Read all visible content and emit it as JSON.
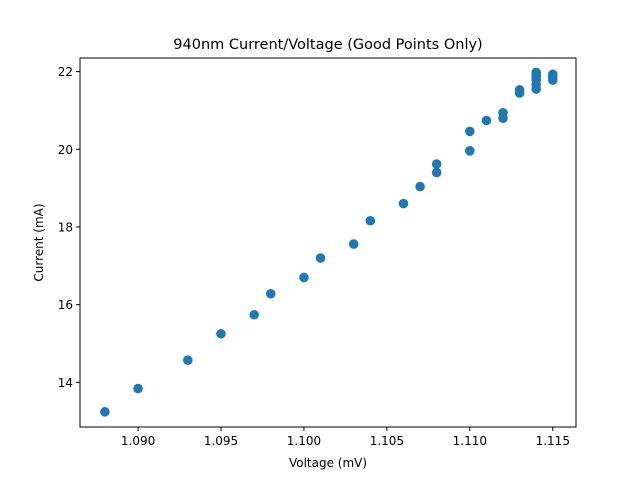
{
  "chart_data": {
    "type": "scatter",
    "title": "940nm Current/Voltage (Good Points Only)",
    "xlabel": "Voltage (mV)",
    "ylabel": "Current (mA)",
    "xlim": [
      1.0865,
      1.1164
    ],
    "ylim": [
      12.85,
      22.35
    ],
    "xticks": [
      1.09,
      1.095,
      1.1,
      1.105,
      1.11,
      1.115
    ],
    "xtick_labels": [
      "1.090",
      "1.095",
      "1.100",
      "1.105",
      "1.110",
      "1.115"
    ],
    "yticks": [
      14,
      16,
      18,
      20,
      22
    ],
    "ytick_labels": [
      "14",
      "16",
      "18",
      "20",
      "22"
    ],
    "grid": false,
    "marker_color": "#1f77b4",
    "series": [
      {
        "points": [
          [
            1.088,
            13.24
          ],
          [
            1.09,
            13.84
          ],
          [
            1.093,
            14.57
          ],
          [
            1.095,
            15.25
          ],
          [
            1.097,
            15.74
          ],
          [
            1.098,
            16.28
          ],
          [
            1.1,
            16.7
          ],
          [
            1.101,
            17.2
          ],
          [
            1.103,
            17.56
          ],
          [
            1.104,
            18.16
          ],
          [
            1.106,
            18.6
          ],
          [
            1.107,
            19.04
          ],
          [
            1.108,
            19.4
          ],
          [
            1.108,
            19.62
          ],
          [
            1.11,
            19.96
          ],
          [
            1.11,
            20.46
          ],
          [
            1.111,
            20.74
          ],
          [
            1.112,
            20.8
          ],
          [
            1.112,
            20.94
          ],
          [
            1.113,
            21.45
          ],
          [
            1.113,
            21.53
          ],
          [
            1.114,
            21.55
          ],
          [
            1.114,
            21.66
          ],
          [
            1.114,
            21.78
          ],
          [
            1.114,
            21.87
          ],
          [
            1.114,
            21.93
          ],
          [
            1.114,
            21.98
          ],
          [
            1.115,
            21.78
          ],
          [
            1.115,
            21.86
          ],
          [
            1.115,
            21.93
          ]
        ]
      }
    ]
  }
}
